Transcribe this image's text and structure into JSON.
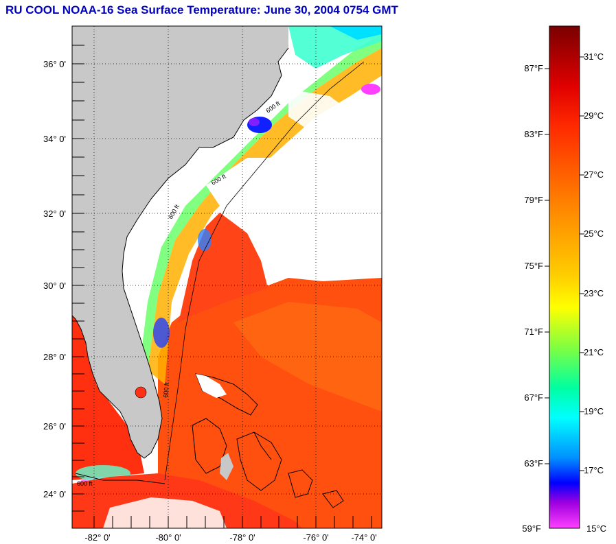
{
  "title": "RU COOL  NOAA-16  Sea Surface Temperature:  June 30, 2004 0754 GMT",
  "map": {
    "lat_labels": [
      "36° 0'",
      "34° 0'",
      "32° 0'",
      "30° 0'",
      "28° 0'",
      "26° 0'",
      "24° 0'"
    ],
    "lon_labels": [
      "-82° 0'",
      "-80° 0'",
      "-78° 0'",
      "-76° 0'",
      "-74° 0'"
    ],
    "contour_labels": [
      "600 ft",
      "600 ft",
      "600 ft",
      "600 ft",
      "600 ft"
    ],
    "land_color": "#c8c8c8",
    "cloud_color": "#ffffff"
  },
  "colorbar": {
    "fahrenheit_labels": [
      "87°F",
      "83°F",
      "79°F",
      "75°F",
      "71°F",
      "67°F",
      "63°F",
      "59°F"
    ],
    "celsius_labels": [
      "31°C",
      "29°C",
      "27°C",
      "25°C",
      "23°C",
      "21°C",
      "19°C",
      "17°C",
      "15°C"
    ],
    "colors": [
      "#800000",
      "#ff0000",
      "#ff6000",
      "#ffa000",
      "#ffff00",
      "#80ff40",
      "#00ffff",
      "#0080ff",
      "#0000ff",
      "#8000ff",
      "#ff40ff"
    ]
  }
}
